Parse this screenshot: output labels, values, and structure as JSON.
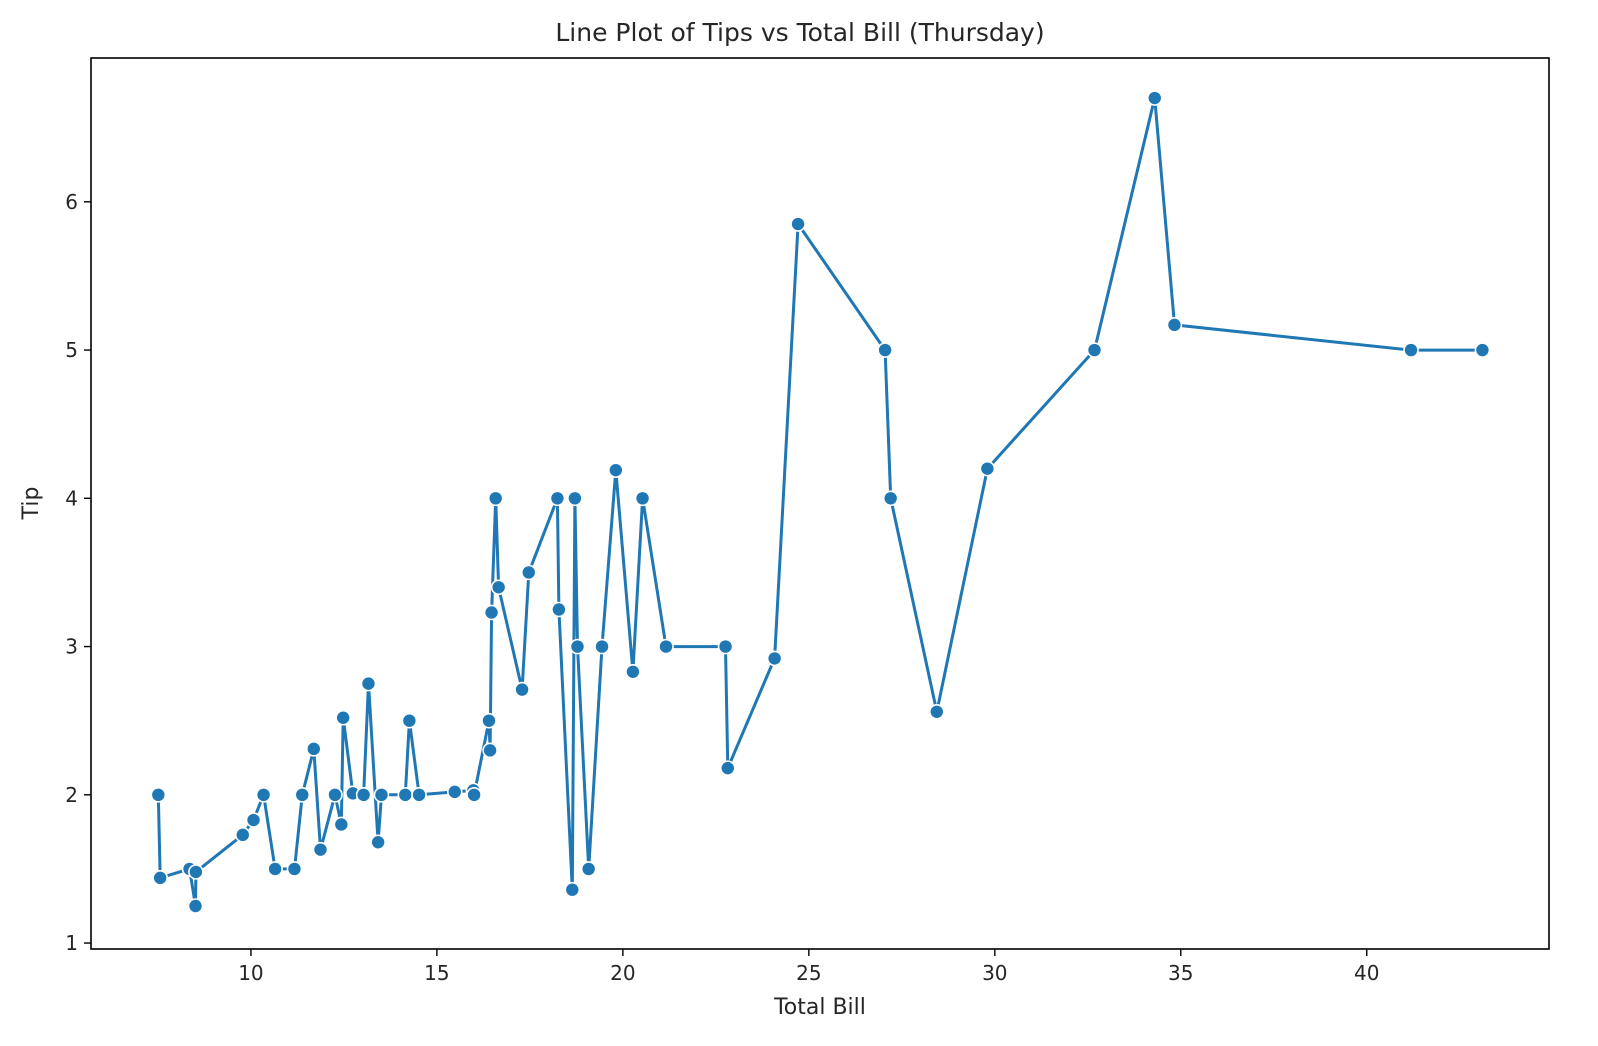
{
  "chart_data": {
    "type": "line",
    "title": "Line Plot of Tips vs Total Bill (Thursday)",
    "xlabel": "Total Bill",
    "ylabel": "Tip",
    "xlim": [
      5.7,
      44.9
    ],
    "ylim": [
      0.96,
      6.97
    ],
    "xticks": [
      10,
      15,
      20,
      25,
      30,
      35,
      40
    ],
    "yticks": [
      1,
      2,
      3,
      4,
      5,
      6
    ],
    "grid": false,
    "series": [
      {
        "color": "#1f77b4",
        "marker": "circle",
        "x": [
          7.51,
          7.56,
          8.35,
          8.51,
          8.52,
          9.78,
          10.07,
          10.34,
          10.65,
          11.17,
          11.38,
          11.69,
          11.87,
          12.26,
          12.43,
          12.48,
          12.74,
          13.03,
          13.16,
          13.42,
          13.51,
          14.15,
          14.26,
          14.52,
          15.48,
          15.98,
          16.0,
          16.4,
          16.43,
          16.47,
          16.58,
          16.66,
          17.29,
          17.47,
          18.24,
          18.28,
          18.64,
          18.71,
          18.78,
          19.08,
          19.44,
          19.81,
          20.27,
          20.53,
          21.16,
          22.76,
          22.82,
          24.08,
          24.71,
          27.05,
          27.2,
          28.44,
          29.8,
          32.68,
          34.3,
          34.83,
          41.19,
          43.11
        ],
        "y": [
          2.0,
          1.44,
          1.5,
          1.25,
          1.48,
          1.73,
          1.83,
          2.0,
          1.5,
          1.5,
          2.0,
          2.31,
          1.63,
          2.0,
          1.8,
          2.52,
          2.01,
          2.0,
          2.75,
          1.68,
          2.0,
          2.0,
          2.5,
          2.0,
          2.02,
          2.03,
          2.0,
          2.5,
          2.3,
          3.23,
          4.0,
          3.4,
          2.71,
          3.5,
          4.0,
          3.25,
          1.36,
          4.0,
          3.0,
          1.5,
          3.0,
          4.19,
          2.83,
          4.0,
          3.0,
          3.0,
          2.18,
          2.92,
          5.85,
          5.0,
          4.0,
          2.56,
          4.2,
          5.0,
          6.7,
          5.17,
          5.0,
          5.0
        ]
      }
    ]
  }
}
